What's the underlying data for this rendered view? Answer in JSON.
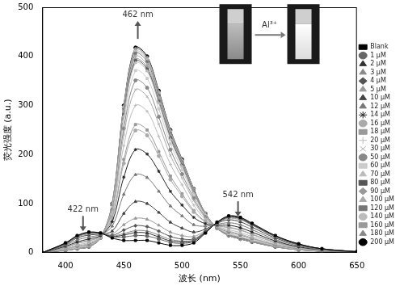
{
  "chart_data": {
    "type": "line",
    "x_label": "波长 (nm)",
    "y_label": "荧光强度 (a.u.)",
    "x": [
      380,
      400,
      410,
      420,
      430,
      440,
      450,
      460,
      470,
      480,
      490,
      500,
      510,
      520,
      530,
      540,
      550,
      560,
      580,
      600,
      620,
      650
    ],
    "xlim": [
      380,
      650
    ],
    "xticks": [
      400,
      450,
      500,
      550,
      600,
      650
    ],
    "ylim": [
      0,
      500
    ],
    "yticks": [
      0,
      100,
      200,
      300,
      400,
      500
    ],
    "grid": false,
    "legend": "right",
    "annotations": [
      {
        "text": "462 nm",
        "x": 462,
        "y": 485,
        "arrow": "up"
      },
      {
        "text": "422 nm",
        "x": 415,
        "y": 88,
        "arrow": "down"
      },
      {
        "text": "542 nm",
        "x": 548,
        "y": 118,
        "arrow": "down"
      },
      {
        "text": "Al³⁺",
        "x": 575,
        "y": 470,
        "arrow": "right"
      }
    ],
    "series": [
      {
        "name": "Blank",
        "color": "#000000",
        "marker": "rect",
        "values": [
          0,
          20,
          35,
          42,
          40,
          30,
          25,
          25,
          25,
          20,
          15,
          15,
          20,
          40,
          62,
          75,
          72,
          60,
          35,
          18,
          8,
          2
        ]
      },
      {
        "name": "1 μM",
        "color": "#666666",
        "marker": "circle",
        "values": [
          0,
          20,
          34,
          41,
          40,
          32,
          32,
          35,
          34,
          28,
          21,
          19,
          23,
          41,
          62,
          74,
          71,
          59,
          34,
          18,
          8,
          2
        ]
      },
      {
        "name": "2 μM",
        "color": "#333333",
        "marker": "triangle",
        "values": [
          0,
          19,
          34,
          41,
          40,
          33,
          36,
          41,
          40,
          32,
          24,
          22,
          24,
          42,
          61,
          73,
          70,
          58,
          34,
          17,
          8,
          2
        ]
      },
      {
        "name": "3 μM",
        "color": "#888888",
        "marker": "triangle",
        "values": [
          0,
          19,
          34,
          40,
          39,
          34,
          39,
          45,
          44,
          36,
          27,
          24,
          26,
          42,
          61,
          73,
          70,
          58,
          34,
          17,
          8,
          2
        ]
      },
      {
        "name": "4 μM",
        "color": "#555555",
        "marker": "rectRot",
        "values": [
          0,
          19,
          33,
          40,
          39,
          35,
          46,
          55,
          53,
          44,
          33,
          28,
          28,
          43,
          61,
          72,
          69,
          57,
          33,
          17,
          8,
          2
        ]
      },
      {
        "name": "5 μM",
        "color": "#999999",
        "marker": "triangle",
        "values": [
          0,
          18,
          32,
          38,
          39,
          38,
          57,
          70,
          68,
          56,
          42,
          35,
          33,
          45,
          61,
          70,
          67,
          56,
          32,
          17,
          7,
          2
        ]
      },
      {
        "name": "10 μM",
        "color": "#444444",
        "marker": "triangle",
        "values": [
          0,
          17,
          30,
          36,
          38,
          44,
          80,
          104,
          100,
          82,
          62,
          50,
          42,
          48,
          60,
          67,
          63,
          52,
          30,
          16,
          7,
          2
        ]
      },
      {
        "name": "12 μM",
        "color": "#777777",
        "marker": "triangle",
        "values": [
          0,
          15,
          26,
          32,
          37,
          54,
          119,
          159,
          153,
          125,
          95,
          75,
          57,
          54,
          58,
          61,
          57,
          47,
          27,
          14,
          6,
          2
        ]
      },
      {
        "name": "14 μM",
        "color": "#222222",
        "marker": "star",
        "values": [
          0,
          13,
          22,
          28,
          35,
          63,
          154,
          210,
          201,
          166,
          125,
          97,
          72,
          59,
          56,
          56,
          51,
          42,
          24,
          12,
          6,
          2
        ]
      },
      {
        "name": "16 μM",
        "color": "#aaaaaa",
        "marker": "circle",
        "values": [
          0,
          11,
          20,
          25,
          34,
          70,
          182,
          249,
          239,
          197,
          149,
          115,
          83,
          63,
          55,
          52,
          47,
          38,
          22,
          11,
          5,
          1
        ]
      },
      {
        "name": "18 μM",
        "color": "#999999",
        "marker": "rect",
        "values": [
          0,
          11,
          19,
          24,
          34,
          72,
          190,
          261,
          250,
          206,
          156,
          120,
          86,
          64,
          55,
          51,
          46,
          37,
          21,
          11,
          5,
          1
        ]
      },
      {
        "name": "20 μM",
        "color": "#bbbbbb",
        "marker": "cross",
        "values": [
          0,
          10,
          16,
          21,
          33,
          79,
          218,
          300,
          288,
          237,
          180,
          138,
          97,
          68,
          54,
          47,
          41,
          33,
          19,
          10,
          5,
          1
        ]
      },
      {
        "name": "30 μM",
        "color": "#aaaaaa",
        "marker": "crossRot",
        "values": [
          0,
          8,
          14,
          19,
          32,
          85,
          240,
          332,
          318,
          262,
          198,
          152,
          106,
          71,
          53,
          44,
          38,
          30,
          17,
          9,
          4,
          1
        ]
      },
      {
        "name": "50 μM",
        "color": "#888888",
        "marker": "circle",
        "values": [
          0,
          8,
          13,
          17,
          32,
          88,
          253,
          351,
          336,
          277,
          210,
          160,
          111,
          73,
          52,
          42,
          36,
          29,
          16,
          8,
          4,
          1
        ]
      },
      {
        "name": "60 μM",
        "color": "#cccccc",
        "marker": "rect",
        "values": [
          0,
          7,
          11,
          16,
          31,
          92,
          267,
          371,
          355,
          293,
          222,
          169,
          117,
          75,
          51,
          40,
          33,
          27,
          15,
          7,
          4,
          1
        ]
      },
      {
        "name": "70 μM",
        "color": "#bbbbbb",
        "marker": "triangle",
        "values": [
          0,
          6,
          10,
          14,
          31,
          94,
          278,
          387,
          370,
          305,
          231,
          176,
          121,
          77,
          51,
          38,
          32,
          25,
          14,
          7,
          3,
          1
        ]
      },
      {
        "name": "80 μM",
        "color": "#555555",
        "marker": "rect",
        "values": [
          0,
          6,
          10,
          14,
          31,
          95,
          281,
          391,
          374,
          308,
          234,
          178,
          122,
          77,
          51,
          38,
          31,
          25,
          14,
          7,
          3,
          1
        ]
      },
      {
        "name": "90 μM",
        "color": "#999999",
        "marker": "rectRot",
        "values": [
          0,
          6,
          10,
          14,
          31,
          96,
          284,
          394,
          378,
          311,
          236,
          180,
          123,
          78,
          51,
          37,
          31,
          24,
          13,
          7,
          3,
          1
        ]
      },
      {
        "name": "100 μM",
        "color": "#aaaaaa",
        "marker": "triangle",
        "values": [
          0,
          6,
          9,
          13,
          30,
          97,
          288,
          400,
          383,
          316,
          239,
          182,
          125,
          78,
          51,
          37,
          30,
          24,
          13,
          7,
          3,
          1
        ]
      },
      {
        "name": "120 μM",
        "color": "#777777",
        "marker": "rect",
        "values": [
          0,
          5,
          9,
          13,
          30,
          98,
          292,
          406,
          389,
          321,
          243,
          185,
          127,
          79,
          50,
          36,
          29,
          23,
          13,
          6,
          3,
          1
        ]
      },
      {
        "name": "140 μM",
        "color": "#bbbbbb",
        "marker": "circle",
        "values": [
          0,
          5,
          9,
          13,
          30,
          99,
          295,
          410,
          393,
          324,
          245,
          187,
          128,
          79,
          50,
          36,
          29,
          23,
          13,
          6,
          3,
          1
        ]
      },
      {
        "name": "160 μM",
        "color": "#999999",
        "marker": "rect",
        "values": [
          0,
          5,
          8,
          12,
          30,
          99,
          297,
          414,
          396,
          327,
          248,
          188,
          129,
          80,
          50,
          35,
          28,
          22,
          12,
          6,
          3,
          1
        ]
      },
      {
        "name": "180 μM",
        "color": "#888888",
        "marker": "triangle",
        "values": [
          0,
          5,
          8,
          12,
          30,
          100,
          299,
          416,
          398,
          328,
          249,
          189,
          130,
          80,
          50,
          35,
          28,
          22,
          12,
          6,
          3,
          1
        ]
      },
      {
        "name": "200 μM",
        "color": "#000000",
        "marker": "circle",
        "values": [
          0,
          5,
          8,
          12,
          30,
          100,
          300,
          418,
          400,
          330,
          250,
          190,
          130,
          80,
          50,
          35,
          28,
          22,
          12,
          6,
          3,
          1
        ]
      }
    ]
  }
}
